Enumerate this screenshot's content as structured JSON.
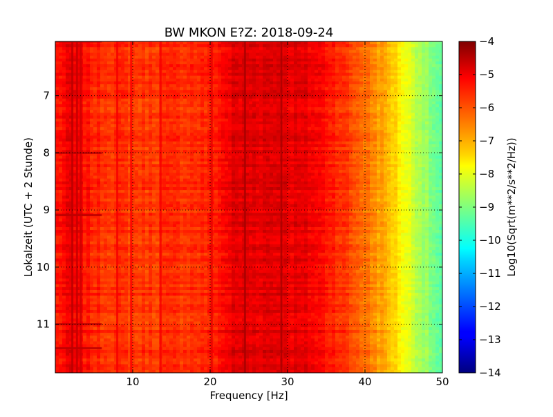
{
  "chart_data": {
    "type": "heatmap",
    "title": "BW MKON E?Z: 2018-09-24",
    "xlabel": "Frequency [Hz]",
    "ylabel": "Lokalzeit (UTC + 2 Stunde)",
    "xlim": [
      0,
      50
    ],
    "ylim": [
      11.85,
      6.05
    ],
    "y_inverted": true,
    "x_ticks": [
      10,
      20,
      30,
      40,
      50
    ],
    "x_tick_labels": [
      "10",
      "20",
      "30",
      "40",
      "50"
    ],
    "y_ticks": [
      7,
      8,
      9,
      10,
      11
    ],
    "y_tick_labels": [
      "7",
      "8",
      "9",
      "10",
      "11"
    ],
    "grid": true,
    "colormap": "jet",
    "colorbar": {
      "label": "Log10(Sqrt(m**2/s**2/Hz))",
      "min": -14,
      "max": -4,
      "ticks": [
        -4,
        -5,
        -6,
        -7,
        -8,
        -9,
        -10,
        -11,
        -12,
        -13,
        -14
      ],
      "tick_labels": [
        "−4",
        "−5",
        "−6",
        "−7",
        "−8",
        "−9",
        "−10",
        "−11",
        "−12",
        "−13",
        "−14"
      ]
    },
    "frequency_profile": {
      "frequency_hz": [
        0,
        2,
        5,
        10,
        15,
        20,
        23,
        28,
        33,
        36,
        38,
        40,
        42,
        43.5,
        45,
        46.5,
        48,
        50
      ],
      "log10_amplitude": [
        -5.5,
        -5.1,
        -5.6,
        -5.8,
        -5.7,
        -5.6,
        -5.0,
        -4.9,
        -5.1,
        -5.5,
        -5.9,
        -6.3,
        -6.8,
        -7.2,
        -7.8,
        -8.3,
        -8.8,
        -9.5
      ]
    },
    "strong_lines_hz": [
      2.2,
      2.8,
      3.3,
      8.0,
      9.8,
      13.6,
      20.2,
      24.5,
      29.2
    ],
    "strong_rows_hours": [
      6.05,
      8.0,
      9.09,
      11.0,
      11.42
    ]
  }
}
